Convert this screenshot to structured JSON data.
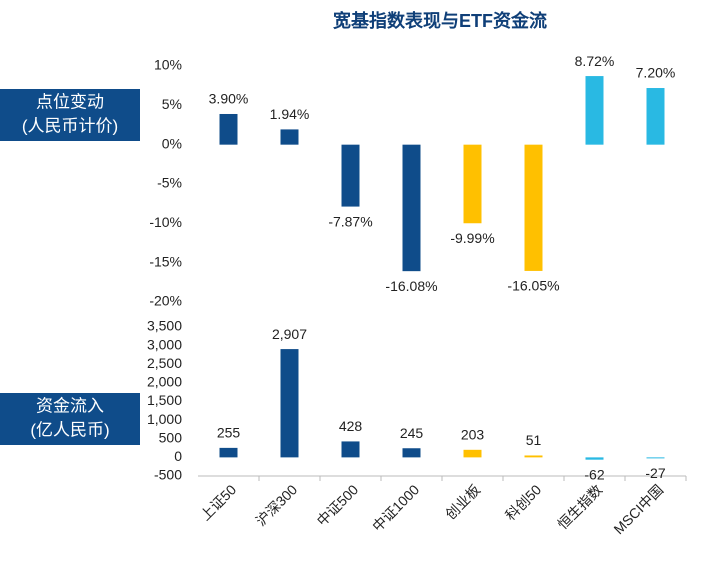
{
  "chart_data": [
    {
      "type": "bar",
      "title": "宽基指数表现与ETF资金流",
      "axis_label": [
        "点位变动",
        "(人民币计价)"
      ],
      "values": [
        3.9,
        1.94,
        -7.87,
        -16.08,
        -9.99,
        -16.05,
        8.72,
        7.2
      ],
      "value_labels": [
        "3.90%",
        "1.94%",
        "-7.87%",
        "-16.08%",
        "-9.99%",
        "-16.05%",
        "8.72%",
        "7.20%"
      ],
      "colors": [
        "#0f4c8a",
        "#0f4c8a",
        "#0f4c8a",
        "#0f4c8a",
        "#ffc000",
        "#ffc000",
        "#29b9e3",
        "#29b9e3"
      ],
      "ylim": [
        -20,
        10
      ],
      "yticks": [
        {
          "value": -20,
          "label": "-20%"
        },
        {
          "value": -15,
          "label": "-15%"
        },
        {
          "value": -10,
          "label": "-10%"
        },
        {
          "value": -5,
          "label": "-5%"
        },
        {
          "value": 0,
          "label": "0%"
        },
        {
          "value": 5,
          "label": "5%"
        },
        {
          "value": 10,
          "label": "10%"
        }
      ]
    },
    {
      "type": "bar",
      "axis_label": [
        "资金流入",
        "(亿人民币)"
      ],
      "categories": [
        "上证50",
        "沪深300",
        "中证500",
        "中证1000",
        "创业板",
        "科创50",
        "恒生指数",
        "MSCI中国"
      ],
      "values": [
        255,
        2907,
        428,
        245,
        203,
        51,
        -62,
        -27
      ],
      "value_labels": [
        "255",
        "2,907",
        "428",
        "245",
        "203",
        "51",
        "-62",
        "-27"
      ],
      "colors": [
        "#0f4c8a",
        "#0f4c8a",
        "#0f4c8a",
        "#0f4c8a",
        "#ffc000",
        "#ffc000",
        "#29b9e3",
        "#29b9e3"
      ],
      "ylim": [
        -500,
        3500
      ],
      "yticks": [
        -500,
        0,
        500,
        {
          "value": 1000,
          "label": "1,000"
        },
        {
          "value": 1500,
          "label": "1,500"
        },
        {
          "value": 2000,
          "label": "2,000"
        },
        {
          "value": 2500,
          "label": "2,500"
        },
        {
          "value": 3000,
          "label": "3,000"
        },
        {
          "value": 3500,
          "label": "3,500"
        }
      ]
    }
  ]
}
